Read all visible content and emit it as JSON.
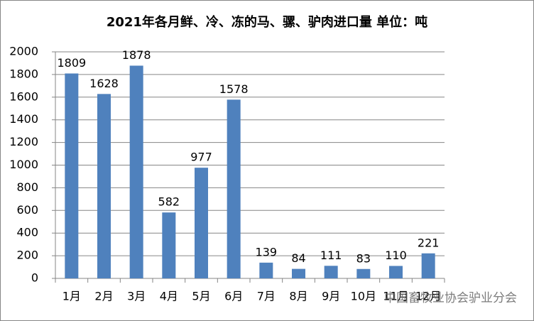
{
  "chart_data": {
    "type": "bar",
    "title": "2021年各月鲜、冷、冻的马、骡、驴肉进口量 单位：吨",
    "categories": [
      "1月",
      "2月",
      "3月",
      "4月",
      "5月",
      "6月",
      "7月",
      "8月",
      "9月",
      "10月",
      "11月",
      "12月"
    ],
    "values": [
      1809,
      1628,
      1878,
      582,
      977,
      1578,
      139,
      84,
      111,
      83,
      110,
      221
    ],
    "color": "#4f81bd",
    "ylim": [
      0,
      2000
    ],
    "yticks": [
      0,
      200,
      400,
      600,
      800,
      1000,
      1200,
      1400,
      1600,
      1800,
      2000
    ],
    "grid": true,
    "watermark": "中国畜牧业协会驴业分会"
  }
}
